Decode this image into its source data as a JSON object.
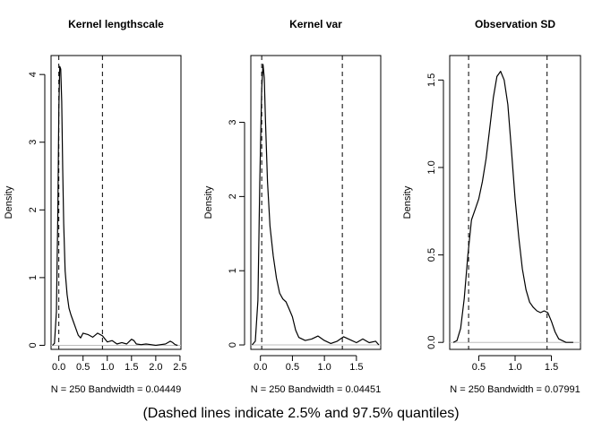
{
  "chart_data": [
    {
      "type": "line",
      "title": "Kernel lengthscale",
      "xlabel": "N = 250   Bandwidth = 0.04449",
      "ylabel": "Density",
      "xlim": [
        -0.16,
        2.52
      ],
      "ylim": [
        -0.06,
        4.28
      ],
      "xticks": [
        0.0,
        0.5,
        1.0,
        1.5,
        2.0,
        2.5
      ],
      "xtick_labels": [
        "0.0",
        "0.5",
        "1.0",
        "1.5",
        "2.0",
        "2.5"
      ],
      "yticks": [
        0,
        1,
        2,
        3,
        4
      ],
      "ytick_labels": [
        "0",
        "1",
        "2",
        "3",
        "4"
      ],
      "quantiles": [
        0.0,
        0.9
      ],
      "series": [
        {
          "x": [
            -0.13,
            -0.09,
            -0.05,
            -0.02,
            0.0,
            0.02,
            0.04,
            0.06,
            0.08,
            0.1,
            0.13,
            0.17,
            0.21,
            0.25,
            0.3,
            0.35,
            0.4,
            0.45,
            0.5,
            0.6,
            0.7,
            0.8,
            0.9,
            1.0,
            1.1,
            1.2,
            1.3,
            1.4,
            1.5,
            1.55,
            1.6,
            1.7,
            1.8,
            1.9,
            2.0,
            2.1,
            2.2,
            2.3,
            2.35,
            2.4,
            2.45
          ],
          "y": [
            0.0,
            0.03,
            0.5,
            2.0,
            3.5,
            4.12,
            4.08,
            3.6,
            2.6,
            1.8,
            1.1,
            0.75,
            0.55,
            0.45,
            0.35,
            0.25,
            0.15,
            0.11,
            0.18,
            0.16,
            0.12,
            0.18,
            0.14,
            0.05,
            0.07,
            0.02,
            0.04,
            0.02,
            0.09,
            0.07,
            0.02,
            0.01,
            0.02,
            0.01,
            0.0,
            0.01,
            0.02,
            0.06,
            0.04,
            0.01,
            0.0
          ]
        }
      ],
      "grid": false
    },
    {
      "type": "line",
      "title": "Kernel var",
      "xlabel": "N = 250   Bandwidth = 0.04451",
      "ylabel": "Density",
      "xlim": [
        -0.15,
        1.88
      ],
      "ylim": [
        -0.06,
        3.9
      ],
      "xticks": [
        0.0,
        0.5,
        1.0,
        1.5
      ],
      "xtick_labels": [
        "0.0",
        "0.5",
        "1.0",
        "1.5"
      ],
      "yticks": [
        0,
        1,
        2,
        3
      ],
      "ytick_labels": [
        "0",
        "1",
        "2",
        "3"
      ],
      "quantiles": [
        0.02,
        1.28
      ],
      "series": [
        {
          "x": [
            -0.13,
            -0.08,
            -0.04,
            -0.01,
            0.02,
            0.04,
            0.06,
            0.08,
            0.11,
            0.15,
            0.2,
            0.25,
            0.3,
            0.35,
            0.4,
            0.45,
            0.5,
            0.55,
            0.6,
            0.7,
            0.8,
            0.9,
            1.0,
            1.1,
            1.2,
            1.3,
            1.4,
            1.5,
            1.6,
            1.7,
            1.8,
            1.85
          ],
          "y": [
            0.0,
            0.05,
            0.6,
            2.2,
            3.45,
            3.78,
            3.6,
            3.0,
            2.2,
            1.6,
            1.2,
            0.9,
            0.7,
            0.62,
            0.58,
            0.48,
            0.38,
            0.2,
            0.1,
            0.06,
            0.08,
            0.12,
            0.06,
            0.02,
            0.05,
            0.11,
            0.07,
            0.03,
            0.08,
            0.03,
            0.05,
            0.0
          ]
        }
      ],
      "grid": false
    },
    {
      "type": "line",
      "title": "Observation SD",
      "xlabel": "N = 250   Bandwidth = 0.07991",
      "ylabel": "Density",
      "xlim": [
        0.1,
        1.9
      ],
      "ylim": [
        -0.04,
        1.64
      ],
      "xticks": [
        0.5,
        1.0,
        1.5
      ],
      "xtick_labels": [
        "0.5",
        "1.0",
        "1.5"
      ],
      "yticks": [
        0.0,
        0.5,
        1.0,
        1.5
      ],
      "ytick_labels": [
        "0.0",
        "0.5",
        "1.0",
        "1.5"
      ],
      "quantiles": [
        0.36,
        1.44
      ],
      "series": [
        {
          "x": [
            0.15,
            0.2,
            0.25,
            0.3,
            0.35,
            0.4,
            0.45,
            0.5,
            0.55,
            0.6,
            0.65,
            0.7,
            0.75,
            0.8,
            0.85,
            0.9,
            0.95,
            1.0,
            1.05,
            1.1,
            1.15,
            1.2,
            1.25,
            1.3,
            1.35,
            1.4,
            1.45,
            1.5,
            1.55,
            1.6,
            1.7,
            1.8
          ],
          "y": [
            0.0,
            0.01,
            0.08,
            0.25,
            0.5,
            0.7,
            0.76,
            0.82,
            0.92,
            1.05,
            1.22,
            1.4,
            1.52,
            1.55,
            1.5,
            1.36,
            1.1,
            0.82,
            0.6,
            0.42,
            0.3,
            0.23,
            0.2,
            0.18,
            0.17,
            0.18,
            0.17,
            0.12,
            0.06,
            0.02,
            0.0,
            0.0
          ]
        }
      ],
      "grid": false
    }
  ],
  "caption": "(Dashed lines indicate 2.5% and 97.5% quantiles)"
}
